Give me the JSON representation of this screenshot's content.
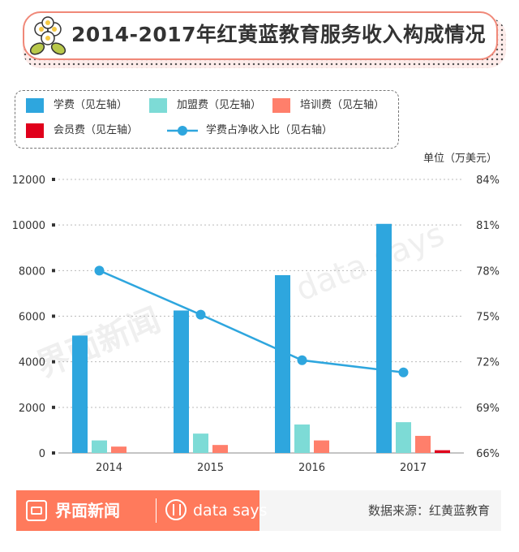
{
  "header": {
    "title": "2014-2017年红黄蓝教育服务收入构成情况",
    "icon": "flower-icon"
  },
  "legend": {
    "items": [
      {
        "label": "学费（见左轴）",
        "color": "#2ea6de",
        "type": "bar"
      },
      {
        "label": "加盟费（见左轴）",
        "color": "#7ddbd6",
        "type": "bar"
      },
      {
        "label": "培训费（见左轴）",
        "color": "#ff7f6b",
        "type": "bar"
      },
      {
        "label": "会员费（见左轴）",
        "color": "#e0001b",
        "type": "bar"
      },
      {
        "label": "学费占净收入比（见右轴）",
        "color": "#2ea6de",
        "type": "line"
      }
    ]
  },
  "unit_label": "单位（万美元）",
  "chart_data": {
    "type": "bar",
    "categories": [
      "2014",
      "2015",
      "2016",
      "2017"
    ],
    "series": [
      {
        "name": "学费（见左轴）",
        "values": [
          5150,
          6250,
          7800,
          10050
        ],
        "color": "#2ea6de"
      },
      {
        "name": "加盟费（见左轴）",
        "values": [
          550,
          850,
          1250,
          1350
        ],
        "color": "#7ddbd6"
      },
      {
        "name": "培训费（见左轴）",
        "values": [
          280,
          350,
          550,
          750
        ],
        "color": "#ff7f6b"
      },
      {
        "name": "会员费（见左轴）",
        "values": [
          0,
          0,
          0,
          120
        ],
        "color": "#e0001b"
      }
    ],
    "line_series": {
      "name": "学费占净收入比（见右轴）",
      "values": [
        78.0,
        75.1,
        72.1,
        71.3
      ],
      "color": "#2ea6de",
      "axis": "right"
    },
    "y_left": {
      "min": 0,
      "max": 12000,
      "ticks": [
        "0",
        "2000",
        "4000",
        "6000",
        "8000",
        "10000",
        "12000"
      ]
    },
    "y_right": {
      "min": 66,
      "max": 84,
      "ticks": [
        "66%",
        "69%",
        "72%",
        "75%",
        "78%",
        "81%",
        "84%"
      ]
    },
    "grid": true,
    "legend_position": "top-left"
  },
  "watermarks": {
    "brand": "界面新闻",
    "datasays": "data says"
  },
  "footer": {
    "brand_name": "界面新闻",
    "datasays": "data says",
    "source": "数据来源：红黄蓝教育"
  }
}
